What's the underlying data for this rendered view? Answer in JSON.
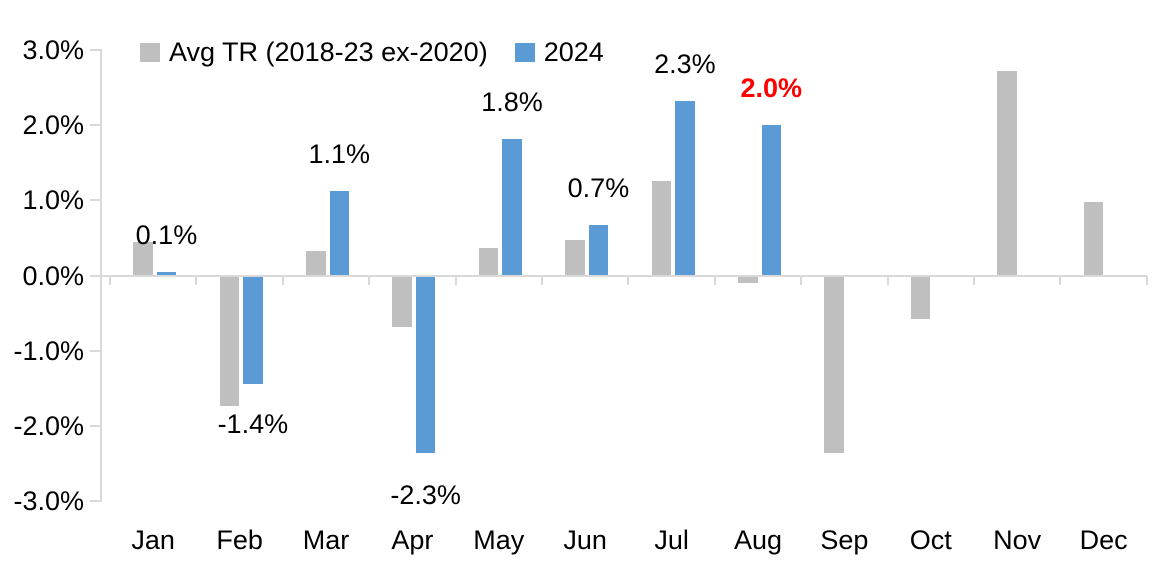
{
  "chart_data": {
    "type": "bar",
    "title": "",
    "categories": [
      "Jan",
      "Feb",
      "Mar",
      "Apr",
      "May",
      "Jun",
      "Jul",
      "Aug",
      "Sep",
      "Oct",
      "Nov",
      "Dec"
    ],
    "series": [
      {
        "name": "Avg TR (2018-23 ex-2020)",
        "color": "#BFBFBF",
        "values": [
          0.45,
          -1.72,
          0.32,
          -0.67,
          0.37,
          0.47,
          1.26,
          -0.08,
          -2.35,
          -0.56,
          2.72,
          0.97
        ]
      },
      {
        "name": "2024",
        "color": "#5B9BD5",
        "values": [
          0.05,
          -1.43,
          1.12,
          -2.34,
          1.81,
          0.67,
          2.32,
          2.0,
          null,
          null,
          null,
          null
        ],
        "data_labels": [
          {
            "text": "0.1%",
            "color": "#000000",
            "bold": false
          },
          {
            "text": "-1.4%",
            "color": "#000000",
            "bold": false
          },
          {
            "text": "1.1%",
            "color": "#000000",
            "bold": false
          },
          {
            "text": "-2.3%",
            "color": "#000000",
            "bold": false
          },
          {
            "text": "1.8%",
            "color": "#000000",
            "bold": false
          },
          {
            "text": "0.7%",
            "color": "#000000",
            "bold": false
          },
          {
            "text": "2.3%",
            "color": "#000000",
            "bold": false
          },
          {
            "text": "2.0%",
            "color": "#FF0000",
            "bold": true
          },
          null,
          null,
          null,
          null
        ]
      }
    ],
    "ylim": [
      -3,
      3
    ],
    "ytick_step": 1,
    "ytick_labels": [
      "3.0%",
      "2.0%",
      "1.0%",
      "0.0%",
      "-1.0%",
      "-2.0%",
      "-3.0%"
    ],
    "xlabel": "",
    "ylabel": "",
    "grid": false,
    "legend_position": "top-left",
    "axis_color": "#D9D9D9",
    "background_color": "#FFFFFF",
    "highlight_color": "#FF0000"
  }
}
